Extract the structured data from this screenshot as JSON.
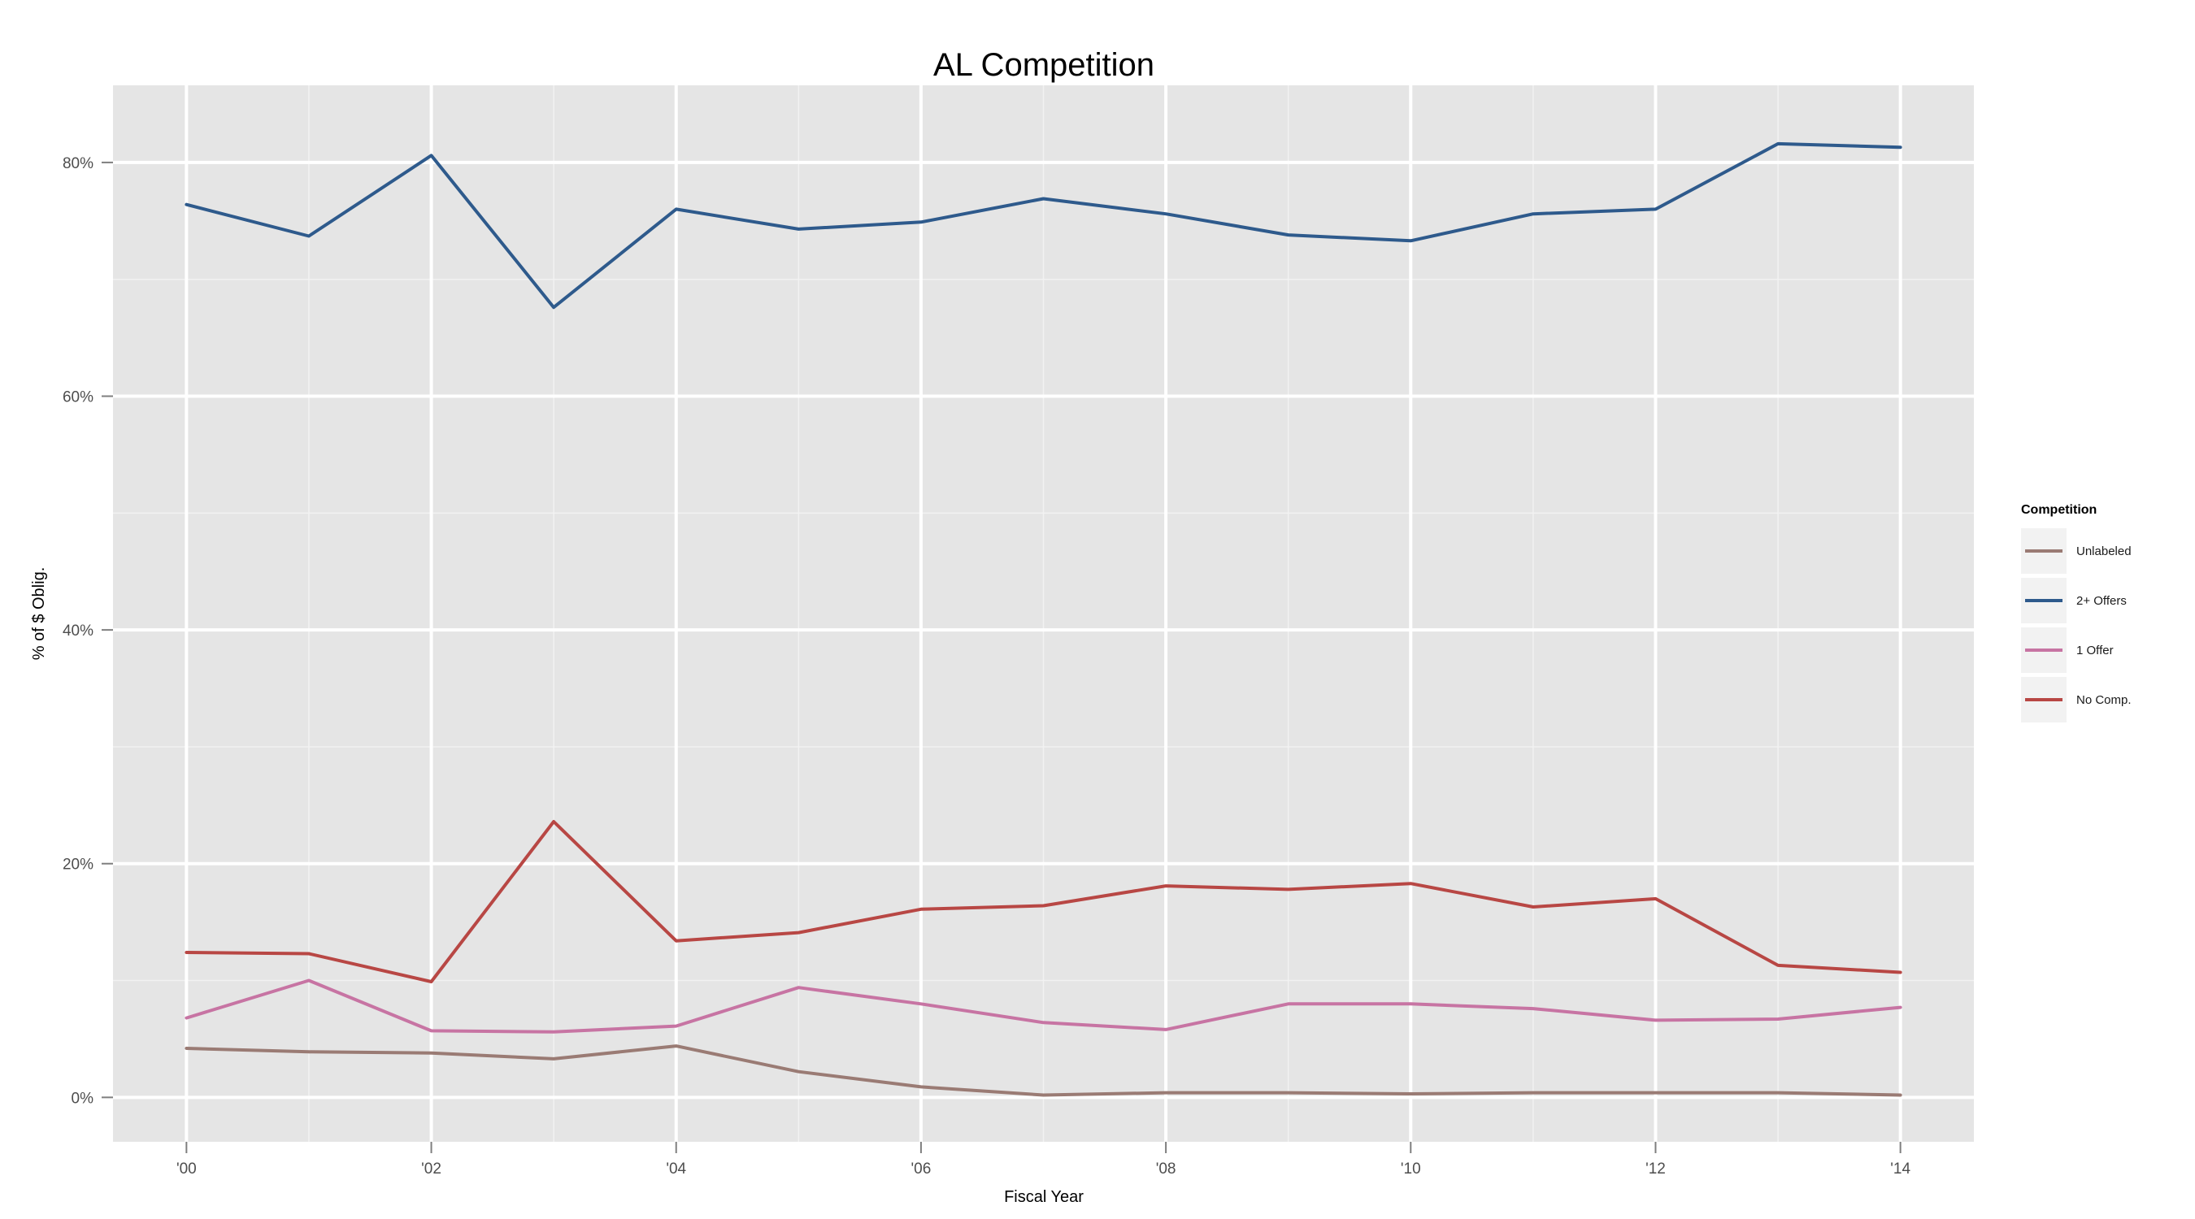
{
  "chart_data": {
    "type": "line",
    "title": "AL Competition",
    "xlabel": "Fiscal Year",
    "ylabel": "% of $ Oblig.",
    "x": [
      2000,
      2001,
      2002,
      2003,
      2004,
      2005,
      2006,
      2007,
      2008,
      2009,
      2010,
      2011,
      2012,
      2013,
      2014
    ],
    "xlim": [
      1999.4,
      2014.6
    ],
    "ylim": [
      -3.8,
      86.6
    ],
    "x_ticks": [
      2000,
      2002,
      2004,
      2006,
      2008,
      2010,
      2012,
      2014
    ],
    "x_tick_labels": [
      "'00",
      "'02",
      "'04",
      "'06",
      "'08",
      "'10",
      "'12",
      "'14"
    ],
    "y_ticks": [
      0,
      20,
      40,
      60,
      80
    ],
    "y_tick_labels": [
      "0%",
      "20%",
      "40%",
      "60%",
      "80%"
    ],
    "grid": true,
    "legend_title": "Competition",
    "legend_position": "right",
    "series": [
      {
        "name": "Unlabeled",
        "color": "#9a7b74",
        "values": [
          4.2,
          3.9,
          3.8,
          3.3,
          4.4,
          2.2,
          0.9,
          0.2,
          0.4,
          0.4,
          0.3,
          0.4,
          0.4,
          0.4,
          0.2
        ]
      },
      {
        "name": "2+ Offers",
        "color": "#2e5a8c",
        "values": [
          76.4,
          73.7,
          80.6,
          67.6,
          76.0,
          74.3,
          74.9,
          76.9,
          75.6,
          73.8,
          73.3,
          75.6,
          76.0,
          81.6,
          81.3
        ]
      },
      {
        "name": "1 Offer",
        "color": "#c774a3",
        "values": [
          6.8,
          10.0,
          5.7,
          5.6,
          6.1,
          9.4,
          8.0,
          6.4,
          5.8,
          8.0,
          8.0,
          7.6,
          6.6,
          6.7,
          7.7
        ]
      },
      {
        "name": "No Comp.",
        "color": "#b84744",
        "values": [
          12.4,
          12.3,
          9.9,
          23.6,
          13.4,
          14.1,
          16.1,
          16.4,
          18.1,
          17.8,
          18.3,
          16.3,
          17.0,
          11.3,
          10.7
        ]
      }
    ]
  }
}
